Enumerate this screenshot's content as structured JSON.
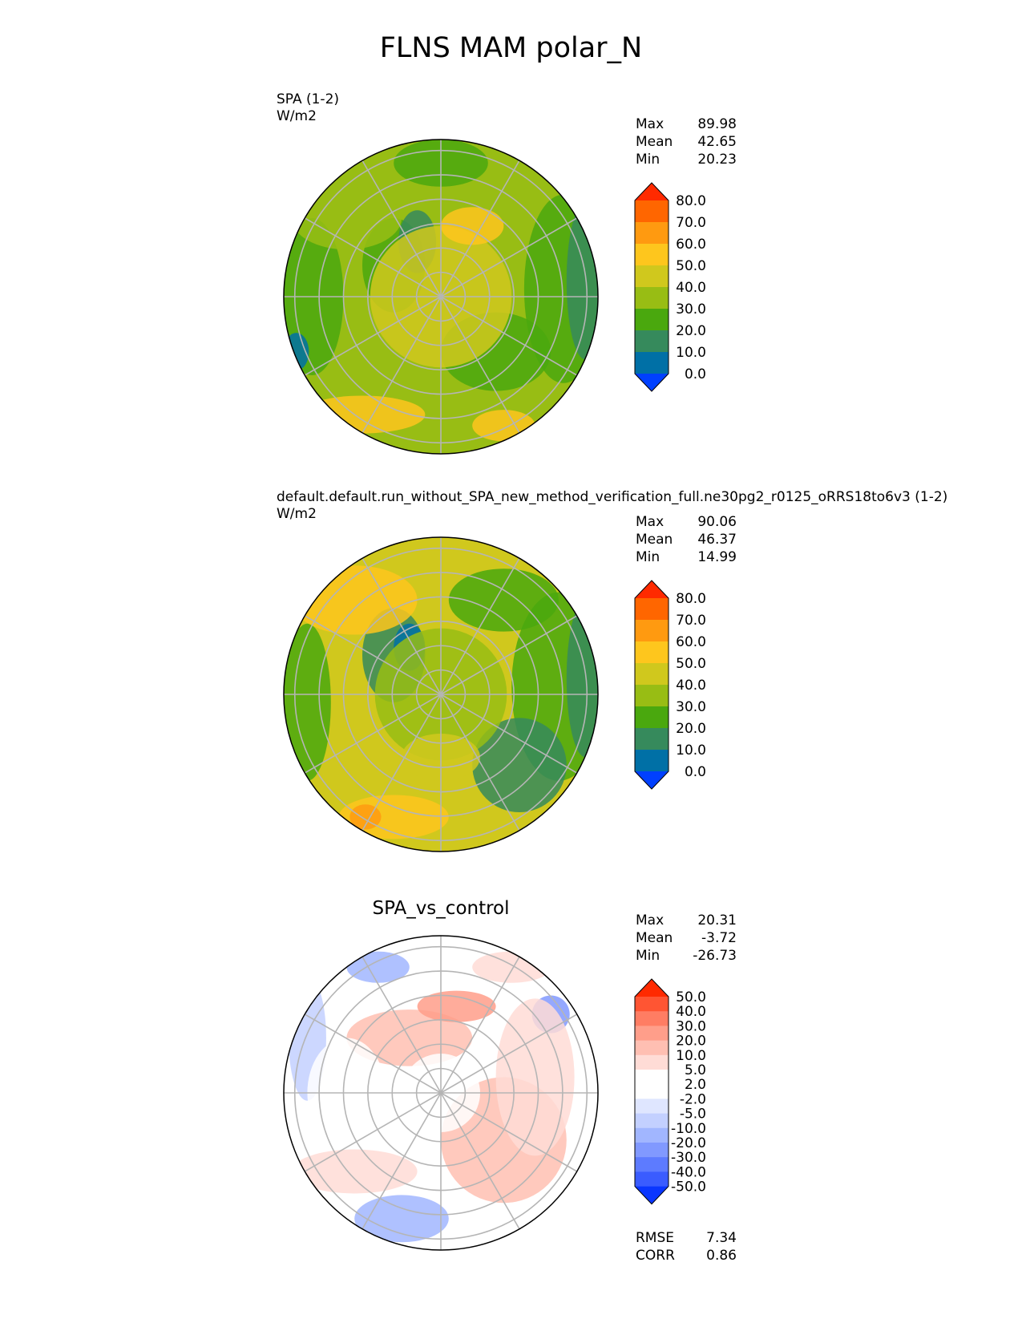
{
  "title": "FLNS MAM polar_N",
  "panels": [
    {
      "id": "test",
      "label": "SPA (1-2)",
      "units": "W/m2",
      "title": "",
      "stats": [
        {
          "name": "Max",
          "value": "89.98"
        },
        {
          "name": "Mean",
          "value": "42.65"
        },
        {
          "name": "Min",
          "value": "20.23"
        }
      ],
      "colorbar": {
        "levels": [
          "80.0",
          "70.0",
          "60.0",
          "50.0",
          "40.0",
          "30.0",
          "20.0",
          "10.0",
          "0.0"
        ],
        "colors": [
          "#ff2a00",
          "#ff6600",
          "#ff9a10",
          "#fec61d",
          "#d0c81d",
          "#98bd14",
          "#4aa80e",
          "#368a5c",
          "#0070a6",
          "#0040ff"
        ]
      },
      "dominant": "#98bd14"
    },
    {
      "id": "ref",
      "label": "default.default.run_without_SPA_new_method_verification_full.ne30pg2_r0125_oRRS18to6v3 (1-2)",
      "units": "W/m2",
      "title": "",
      "stats": [
        {
          "name": "Max",
          "value": "90.06"
        },
        {
          "name": "Mean",
          "value": "46.37"
        },
        {
          "name": "Min",
          "value": "14.99"
        }
      ],
      "colorbar": {
        "levels": [
          "80.0",
          "70.0",
          "60.0",
          "50.0",
          "40.0",
          "30.0",
          "20.0",
          "10.0",
          "0.0"
        ],
        "colors": [
          "#ff2a00",
          "#ff6600",
          "#ff9a10",
          "#fec61d",
          "#d0c81d",
          "#98bd14",
          "#4aa80e",
          "#368a5c",
          "#0070a6",
          "#0040ff"
        ]
      },
      "dominant": "#d0c81d"
    },
    {
      "id": "diff",
      "label": "",
      "units": "",
      "title": "SPA_vs_control",
      "stats": [
        {
          "name": "Max",
          "value": "20.31"
        },
        {
          "name": "Mean",
          "value": "-3.72"
        },
        {
          "name": "Min",
          "value": "-26.73"
        }
      ],
      "colorbar": {
        "levels": [
          "50.0",
          "40.0",
          "30.0",
          "20.0",
          "10.0",
          "5.0",
          "2.0",
          "-2.0",
          "-5.0",
          "-10.0",
          "-20.0",
          "-30.0",
          "-40.0",
          "-50.0"
        ],
        "colors": [
          "#ff2a00",
          "#ff5533",
          "#ff7d63",
          "#ff9e8a",
          "#ffbfb2",
          "#ffdcd6",
          "#ffffff",
          "#ffffff",
          "#dfe6ff",
          "#c3d0ff",
          "#a1b6ff",
          "#8199ff",
          "#5d7bff",
          "#3a5cff",
          "#0a36ff"
        ]
      },
      "dominant": "#ffffff",
      "metrics": [
        {
          "name": "RMSE",
          "value": "7.34"
        },
        {
          "name": "CORR",
          "value": "0.86"
        }
      ]
    }
  ],
  "chart_data": {
    "type": "heatmap",
    "projection": "north-polar-stereographic",
    "title": "FLNS MAM polar_N",
    "maps": [
      {
        "name": "SPA (1-2)",
        "units": "W/m2",
        "max": 89.98,
        "mean": 42.65,
        "min": 20.23,
        "contour_levels": [
          0,
          10,
          20,
          30,
          40,
          50,
          60,
          70,
          80
        ]
      },
      {
        "name": "default.default.run_without_SPA_new_method_verification_full.ne30pg2_r0125_oRRS18to6v3 (1-2)",
        "units": "W/m2",
        "max": 90.06,
        "mean": 46.37,
        "min": 14.99,
        "contour_levels": [
          0,
          10,
          20,
          30,
          40,
          50,
          60,
          70,
          80
        ]
      },
      {
        "name": "SPA_vs_control",
        "max": 20.31,
        "mean": -3.72,
        "min": -26.73,
        "rmse": 7.34,
        "corr": 0.86,
        "contour_levels": [
          -50,
          -40,
          -30,
          -20,
          -10,
          -5,
          -2,
          2,
          5,
          10,
          20,
          30,
          40,
          50
        ]
      }
    ]
  }
}
